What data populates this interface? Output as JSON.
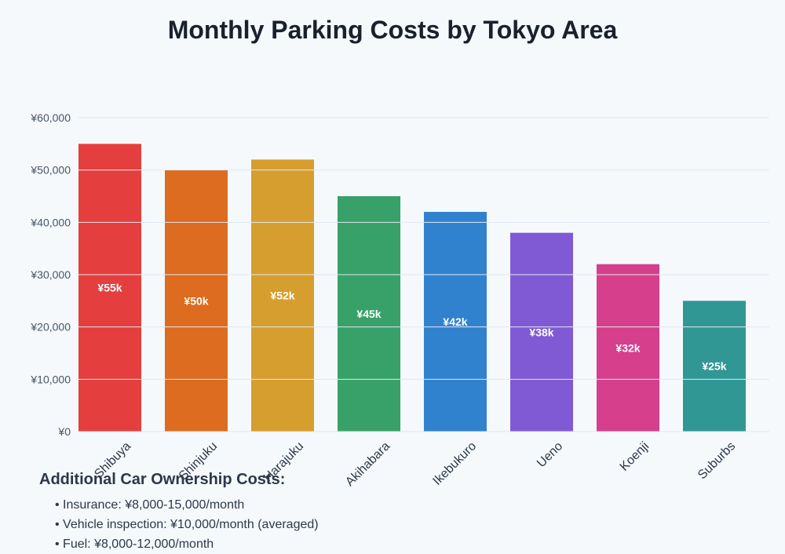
{
  "chart_data": {
    "type": "bar",
    "title": "Monthly Parking Costs by Tokyo Area",
    "categories": [
      "Shibuya",
      "Shinjuku",
      "Harajuku",
      "Akihabara",
      "Ikebukuro",
      "Ueno",
      "Koenji",
      "Suburbs"
    ],
    "values": [
      55000,
      50000,
      52000,
      45000,
      42000,
      38000,
      32000,
      25000
    ],
    "data_labels": [
      "¥55k",
      "¥50k",
      "¥52k",
      "¥45k",
      "¥42k",
      "¥38k",
      "¥32k",
      "¥25k"
    ],
    "colors": [
      "#e53e3e",
      "#dd6b20",
      "#d69e2e",
      "#38a169",
      "#3182ce",
      "#805ad5",
      "#d53f8c",
      "#319795"
    ],
    "ylim": [
      0,
      60000
    ],
    "yticks": [
      0,
      10000,
      20000,
      30000,
      40000,
      50000,
      60000
    ],
    "ytick_labels": [
      "¥0",
      "¥10,000",
      "¥20,000",
      "¥30,000",
      "¥40,000",
      "¥50,000",
      "¥60,000"
    ],
    "grid": true,
    "xlabel": "",
    "ylabel": ""
  },
  "notes": {
    "heading": "Additional Car Ownership Costs:",
    "items": [
      "• Insurance: ¥8,000-15,000/month",
      "• Vehicle inspection: ¥10,000/month (averaged)",
      "• Fuel: ¥8,000-12,000/month"
    ]
  }
}
